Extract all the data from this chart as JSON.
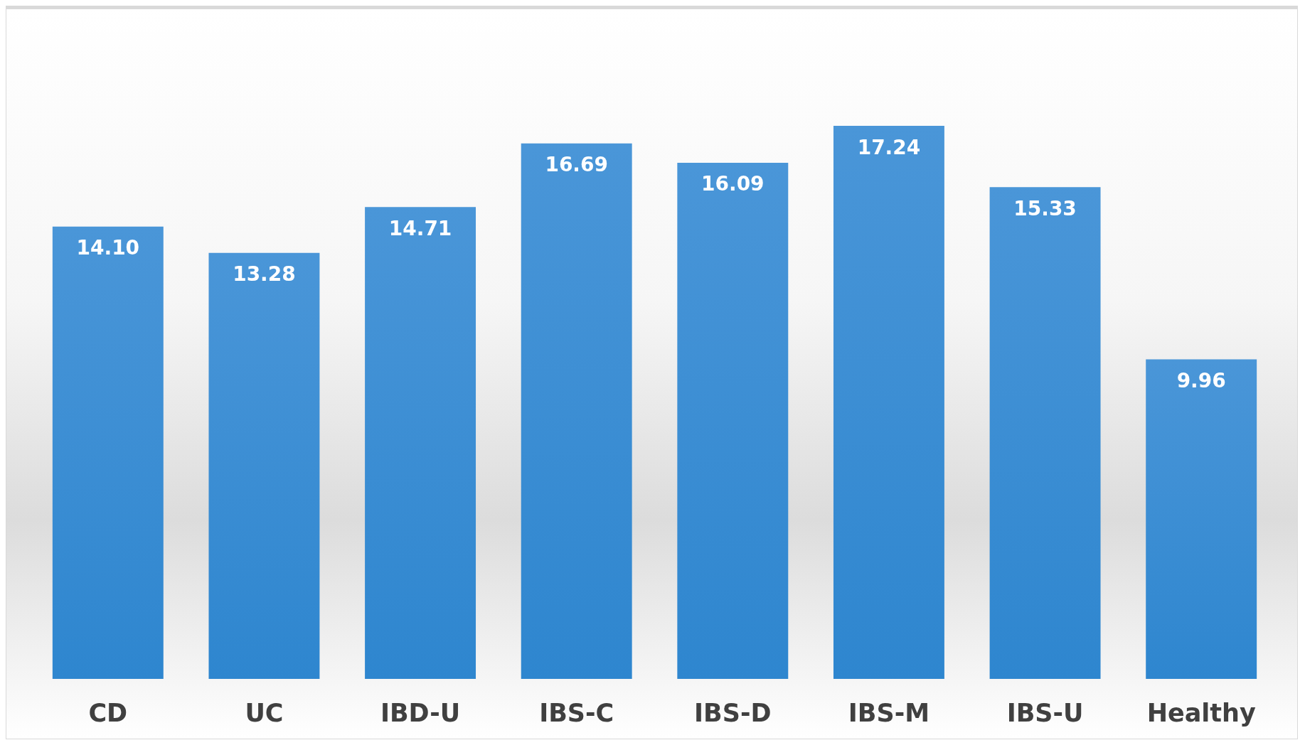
{
  "chart_data": {
    "type": "bar",
    "categories": [
      "CD",
      "UC",
      "IBD-U",
      "IBS-C",
      "IBS-D",
      "IBS-M",
      "IBS-U",
      "Healthy"
    ],
    "values": [
      14.1,
      13.28,
      14.71,
      16.69,
      16.09,
      17.24,
      15.33,
      9.96
    ],
    "value_labels": [
      "14.10",
      "13.28",
      "14.71",
      "16.69",
      "16.09",
      "17.24",
      "15.33",
      "9.96"
    ],
    "color": "#4a96d8"
  }
}
